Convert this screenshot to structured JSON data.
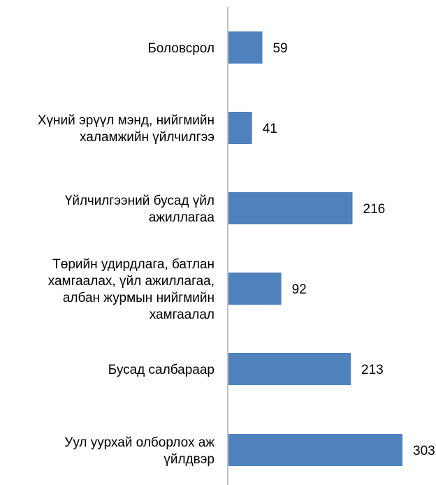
{
  "chart_data": {
    "type": "bar",
    "orientation": "horizontal",
    "categories": [
      [
        "Боловсрол"
      ],
      [
        "Хүний эрүүл мэнд, нийгмийн",
        "халамжийн үйлчилгээ"
      ],
      [
        "Үйлчилгээний бусад үйл",
        "ажиллагаа"
      ],
      [
        "Төрийн удирдлага, батлан",
        "хамгаалах, үйл ажиллагаа,",
        "албан журмын нийгмийн",
        "хамгаалал"
      ],
      [
        "Бусад салбараар"
      ],
      [
        "Уул уурхай олборлох аж",
        "үйлдвэр"
      ]
    ],
    "values": [
      59,
      41,
      216,
      92,
      213,
      303
    ],
    "value_labels": [
      "59",
      "41",
      "216",
      "92",
      "213",
      "303"
    ],
    "bar_color": "#4F81BD",
    "axis_color": "#868686",
    "xlim": [
      0,
      303
    ],
    "gridlines": false,
    "legend": "none",
    "title": ""
  }
}
